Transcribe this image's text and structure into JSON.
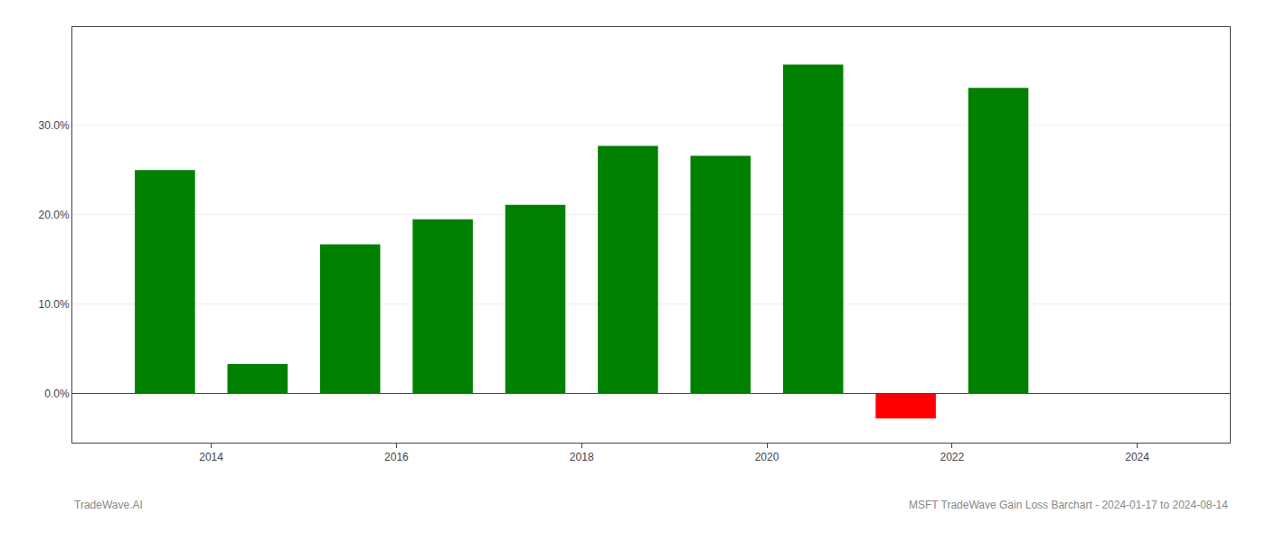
{
  "chart_data": {
    "type": "bar",
    "title": "MSFT TradeWave Gain Loss Barchart - 2024-01-17 to 2024-08-14",
    "annotations": [
      "TradeWave.AI"
    ],
    "x": [
      2013.5,
      2014.5,
      2015.5,
      2016.5,
      2017.5,
      2018.5,
      2019.5,
      2020.5,
      2021.5,
      2022.5
    ],
    "values": [
      0.25,
      0.033,
      0.167,
      0.195,
      0.211,
      0.277,
      0.266,
      0.368,
      -0.028,
      0.342
    ],
    "colors": [
      "#008000",
      "#008000",
      "#008000",
      "#008000",
      "#008000",
      "#008000",
      "#008000",
      "#008000",
      "#ff0000",
      "#008000"
    ],
    "xlim": [
      2012.5,
      2025.0
    ],
    "xticks": [
      2014,
      2016,
      2018,
      2020,
      2022,
      2024
    ],
    "ylim": [
      -0.055,
      0.41
    ],
    "yticks": [
      {
        "value": 0.0,
        "label": "0.0%"
      },
      {
        "value": 0.1,
        "label": "10.0%"
      },
      {
        "value": 0.2,
        "label": "20.0%"
      },
      {
        "value": 0.3,
        "label": "30.0%"
      }
    ],
    "grid": true
  }
}
